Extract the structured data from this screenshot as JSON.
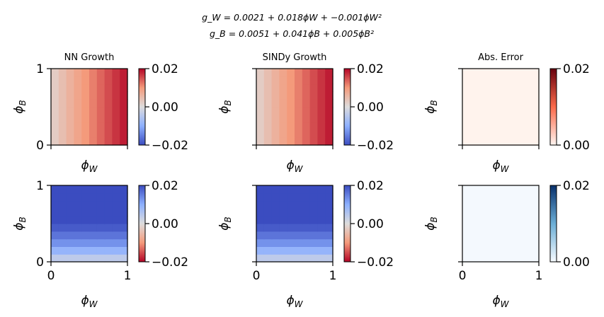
{
  "figure": {
    "suptitle_lines": [
      "g_W = 0.0021 + 0.018ϕW + −0.001ϕW²",
      "g_B = 0.0051 + 0.041ϕB + 0.005ϕB²"
    ]
  },
  "chart_data": [
    {
      "type": "heatmap",
      "title": "NN Growth",
      "xlabel": "ϕ_W",
      "ylabel": "ϕ_B",
      "xlim": [
        0,
        1
      ],
      "ylim": [
        0,
        1
      ],
      "xticks": [],
      "yticks": [
        "0",
        "1"
      ],
      "colormap": "coolwarm",
      "color_range": [
        -0.02,
        0.02
      ],
      "colorbar_ticks": [
        "0.02",
        "0.00",
        "−0.02"
      ],
      "grid": [
        10,
        10
      ],
      "varies_along": "x",
      "values": [
        0.0025,
        0.0045,
        0.0065,
        0.0083,
        0.01,
        0.0118,
        0.0135,
        0.0152,
        0.0168,
        0.0184
      ]
    },
    {
      "type": "heatmap",
      "title": "SINDy Growth",
      "xlabel": "ϕ_W",
      "ylabel": "ϕ_B",
      "xlim": [
        0,
        1
      ],
      "ylim": [
        0,
        1
      ],
      "xticks": [],
      "yticks": [],
      "colormap": "coolwarm",
      "color_range": [
        -0.02,
        0.02
      ],
      "colorbar_ticks": [
        "0.02",
        "0.00",
        "−0.02"
      ],
      "grid": [
        10,
        10
      ],
      "varies_along": "x",
      "values": [
        0.0025,
        0.0045,
        0.0065,
        0.0083,
        0.01,
        0.0118,
        0.0135,
        0.0152,
        0.0168,
        0.0184
      ]
    },
    {
      "type": "heatmap",
      "title": "Abs. Error",
      "xlabel": "ϕ_W",
      "ylabel": "ϕ_B",
      "xlim": [
        0,
        1
      ],
      "ylim": [
        0,
        1
      ],
      "xticks": [],
      "yticks": [],
      "colormap": "Reds",
      "color_range": [
        0.0,
        0.02
      ],
      "colorbar_ticks": [
        "0.02",
        "0.00"
      ],
      "grid": [
        10,
        10
      ],
      "varies_along": "x",
      "values": [
        0.0002,
        0.0002,
        0.0002,
        0.0002,
        0.0002,
        0.0002,
        0.0002,
        0.0002,
        0.0002,
        0.0002
      ]
    },
    {
      "type": "heatmap",
      "title": "",
      "xlabel": "ϕ_W",
      "ylabel": "ϕ_B",
      "xlim": [
        0,
        1
      ],
      "ylim": [
        0,
        1
      ],
      "xticks": [
        "0",
        "1"
      ],
      "yticks": [
        "0",
        "1"
      ],
      "colormap": "coolwarm_r",
      "color_range": [
        -0.02,
        0.02
      ],
      "colorbar_ticks": [
        "0.02",
        "0.00",
        "−0.02"
      ],
      "grid": [
        10,
        10
      ],
      "varies_along": "y",
      "values": [
        0.004,
        0.009,
        0.013,
        0.016,
        0.0185,
        0.02,
        0.02,
        0.02,
        0.02,
        0.02
      ]
    },
    {
      "type": "heatmap",
      "title": "",
      "xlabel": "ϕ_W",
      "ylabel": "ϕ_B",
      "xlim": [
        0,
        1
      ],
      "ylim": [
        0,
        1
      ],
      "xticks": [
        "0",
        "1"
      ],
      "yticks": [],
      "colormap": "coolwarm_r",
      "color_range": [
        -0.02,
        0.02
      ],
      "colorbar_ticks": [
        "0.02",
        "0.00",
        "−0.02"
      ],
      "grid": [
        10,
        10
      ],
      "varies_along": "y",
      "values": [
        0.004,
        0.009,
        0.013,
        0.016,
        0.0185,
        0.02,
        0.02,
        0.02,
        0.02,
        0.02
      ]
    },
    {
      "type": "heatmap",
      "title": "",
      "xlabel": "ϕ_W",
      "ylabel": "ϕ_B",
      "xlim": [
        0,
        1
      ],
      "ylim": [
        0,
        1
      ],
      "xticks": [
        "0",
        "1"
      ],
      "yticks": [],
      "colormap": "Blues",
      "color_range": [
        0.0,
        0.02
      ],
      "colorbar_ticks": [
        "0.02",
        "0.00"
      ],
      "grid": [
        10,
        10
      ],
      "varies_along": "y",
      "values": [
        0.0003,
        0.0003,
        0.0003,
        0.0003,
        0.0003,
        0.0003,
        0.0003,
        0.0003,
        0.0003,
        0.0003
      ]
    }
  ]
}
